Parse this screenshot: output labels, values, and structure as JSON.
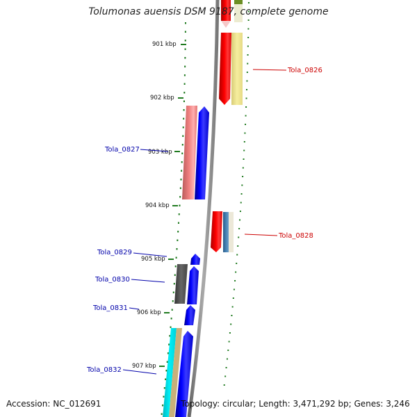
{
  "title": "Tolumonas auensis DSM 9187, complete genome",
  "footer": {
    "accession": "Accession: NC_012691",
    "summary": "Topology: circular; Length: 3,471,292 bp; Genes: 3,246"
  },
  "colors": {
    "forward_gene": "#0000ff",
    "reverse_gene": "#ff0000",
    "pseudo_gene": "#f08080",
    "pale_gene": "#f0e68c",
    "steel_gene": "#4682b4",
    "gray_gene": "#555555",
    "cyan_gene": "#00e5ee",
    "tan_gene": "#c8b07a",
    "tick_green": "#1f7a1f",
    "backbone": "#888888",
    "label_blue": "#0000aa",
    "label_red": "#cc0000"
  },
  "kbp_ticks": [
    "901 kbp",
    "902 kbp",
    "903 kbp",
    "904 kbp",
    "905 kbp",
    "906 kbp",
    "907 kbp"
  ],
  "gene_labels": {
    "tola_0826": "Tola_0826",
    "tola_0827": "Tola_0827",
    "tola_0828": "Tola_0828",
    "tola_0829": "Tola_0829",
    "tola_0830": "Tola_0830",
    "tola_0831": "Tola_0831",
    "tola_0832": "Tola_0832"
  }
}
